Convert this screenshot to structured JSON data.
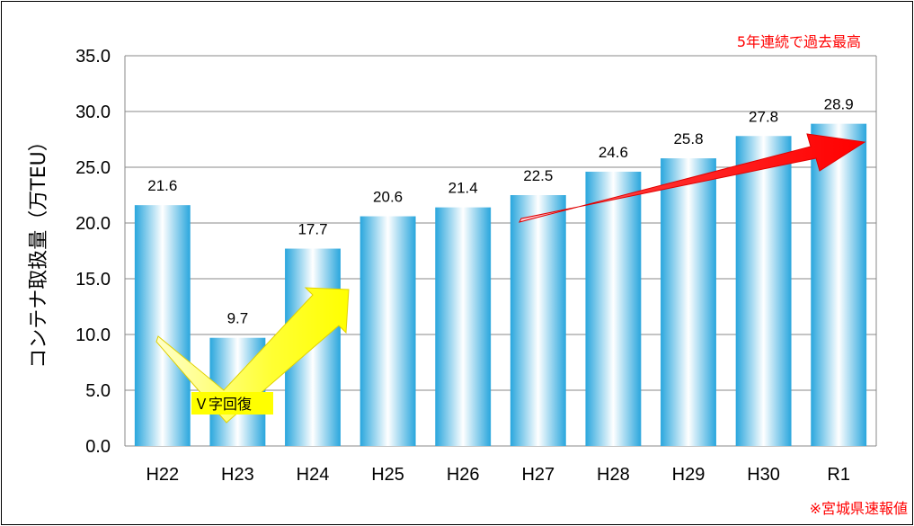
{
  "chart_data": {
    "type": "bar",
    "categories": [
      "H22",
      "H23",
      "H24",
      "H25",
      "H26",
      "H27",
      "H28",
      "H29",
      "H30",
      "R1"
    ],
    "values": [
      21.6,
      9.7,
      17.7,
      20.6,
      21.4,
      22.5,
      24.6,
      25.8,
      27.8,
      28.9
    ],
    "value_labels": [
      "21.6",
      "9.7",
      "17.7",
      "20.6",
      "21.4",
      "22.5",
      "24.6",
      "25.8",
      "27.8",
      "28.9"
    ],
    "ylabel": "コンテナ取扱量（万TEU）",
    "ylim": [
      0,
      35
    ],
    "yticks": [
      "0.0",
      "5.0",
      "10.0",
      "15.0",
      "20.0",
      "25.0",
      "30.0",
      "35.0"
    ],
    "grid": true,
    "highlight_index": 9,
    "colors": {
      "bar_edge": "#29a6dd",
      "bar_center": "#ffffff",
      "highlight_text": "#ff0000",
      "grid": "#888888",
      "yellow_arrow": "#ffff00",
      "red_arrow": "#ff0000"
    },
    "annotations": {
      "record_note": "5年連続で過去最高",
      "recovery_label": "Ｖ字回復",
      "source_note": "※宮城県速報値"
    }
  }
}
